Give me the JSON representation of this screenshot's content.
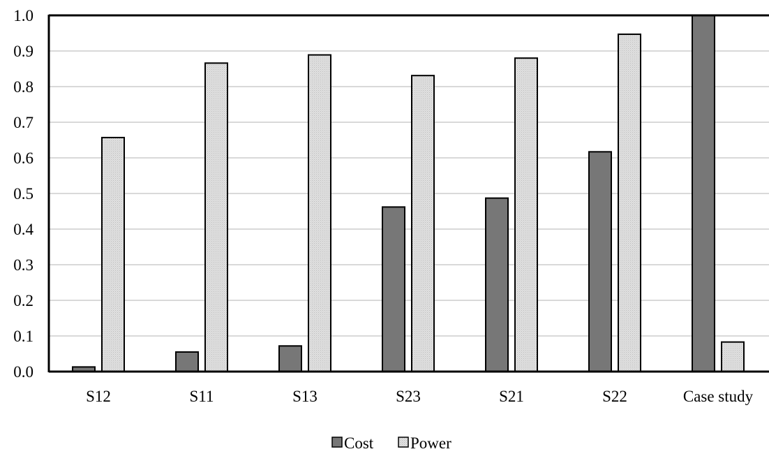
{
  "chart_data": {
    "type": "bar",
    "categories": [
      "S12",
      "S11",
      "S13",
      "S23",
      "S21",
      "S22",
      "Case study"
    ],
    "series": [
      {
        "name": "Cost",
        "color": "#777777",
        "values": [
          0.013,
          0.055,
          0.072,
          0.462,
          0.487,
          0.617,
          1.0
        ]
      },
      {
        "name": "Power",
        "color": "#d4d4d4",
        "values": [
          0.657,
          0.866,
          0.889,
          0.831,
          0.88,
          0.947,
          0.083
        ]
      }
    ],
    "ylim": [
      0,
      1.0
    ],
    "yticks": [
      "0.0",
      "0.1",
      "0.2",
      "0.3",
      "0.4",
      "0.5",
      "0.6",
      "0.7",
      "0.8",
      "0.9",
      "1.0"
    ],
    "grid": true,
    "legend": "bottom-center",
    "title": "",
    "xlabel": "",
    "ylabel": ""
  }
}
